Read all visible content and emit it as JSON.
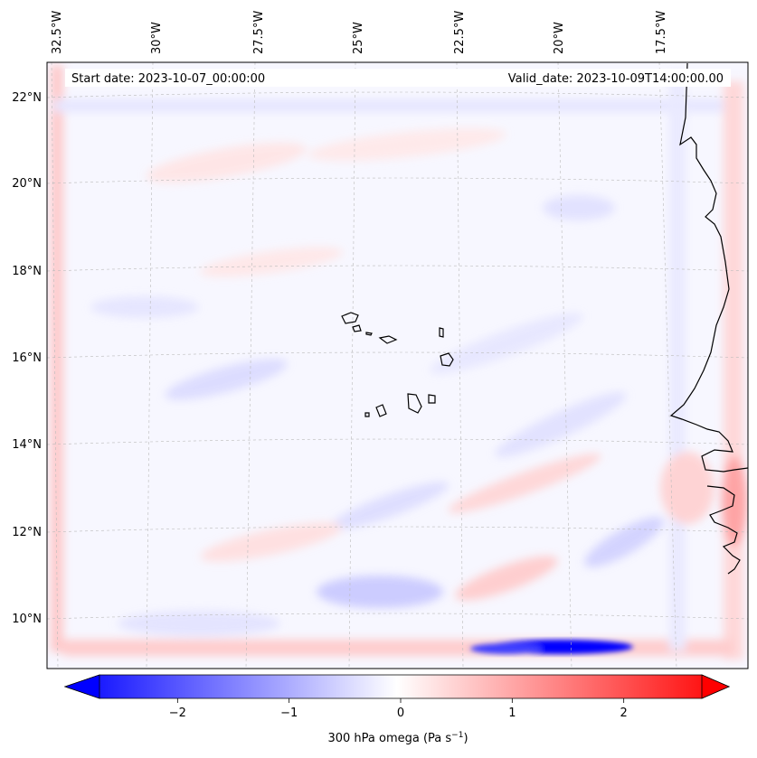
{
  "header": {
    "start_date": "Start date: 2023-10-07_00:00:00",
    "valid_date": "Valid_date: 2023-10-09T14:00:00.00"
  },
  "lon_labels": [
    "32.5°W",
    "30°W",
    "27.5°W",
    "25°W",
    "22.5°W",
    "20°W",
    "17.5°W"
  ],
  "lat_labels": [
    "22°N",
    "20°N",
    "18°N",
    "16°N",
    "14°N",
    "12°N",
    "10°N"
  ],
  "colorbar": {
    "label_main": "300 hPa omega (Pa s",
    "label_exp": "−1",
    "label_end": ")",
    "min": -2.7,
    "max": 2.7,
    "ticks": [
      {
        "value": -2,
        "label": "−2"
      },
      {
        "value": -1,
        "label": "−1"
      },
      {
        "value": 0,
        "label": "0"
      },
      {
        "value": 1,
        "label": "1"
      },
      {
        "value": 2,
        "label": "2"
      }
    ],
    "colors": {
      "negative": "#0000ff",
      "zero": "#ffffff",
      "positive": "#ff0000"
    }
  }
}
